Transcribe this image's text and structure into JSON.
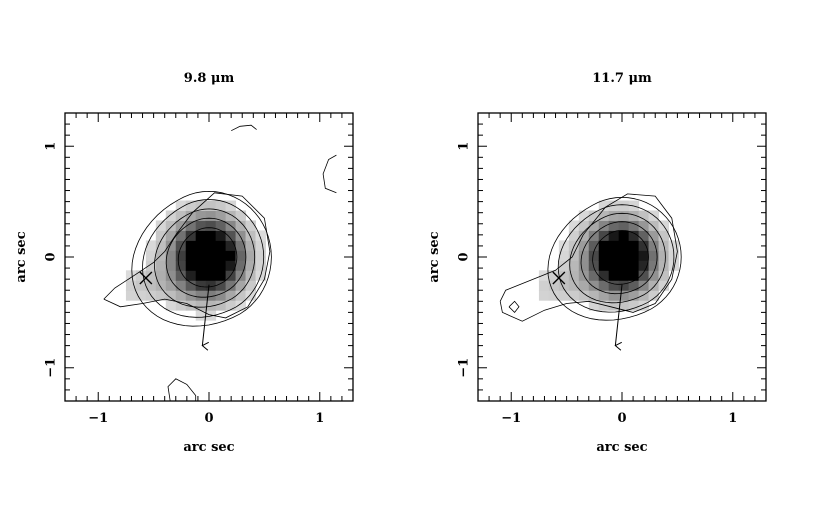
{
  "chart_data": [
    {
      "type": "heatmap",
      "title": "9.8 μm",
      "xlabel": "arc sec",
      "ylabel": "arc sec",
      "xlim": [
        -1.3,
        1.3
      ],
      "ylim": [
        -1.3,
        1.3
      ],
      "x_ticks": [
        -1,
        0,
        1
      ],
      "y_ticks": [
        -1,
        0,
        1
      ],
      "peak": [
        0.0,
        0.0
      ],
      "marker_x": [
        -0.57,
        -0.19
      ],
      "arrow": {
        "from": [
          0.0,
          -0.25
        ],
        "to": [
          -0.06,
          -0.8
        ]
      },
      "source_sigma": [
        0.2,
        0.22
      ],
      "contour_levels": [
        0.05,
        0.1,
        0.2,
        0.35,
        0.55
      ]
    },
    {
      "type": "heatmap",
      "title": "11.7 μm",
      "xlabel": "arc sec",
      "ylabel": "arc sec",
      "xlim": [
        -1.3,
        1.3
      ],
      "ylim": [
        -1.3,
        1.3
      ],
      "x_ticks": [
        -1,
        0,
        1
      ],
      "y_ticks": [
        -1,
        0,
        1
      ],
      "peak": [
        0.0,
        0.0
      ],
      "marker_x": [
        -0.57,
        -0.19
      ],
      "arrow": {
        "from": [
          0.0,
          -0.25
        ],
        "to": [
          -0.06,
          -0.8
        ]
      },
      "source_sigma": [
        0.19,
        0.2
      ],
      "contour_levels": [
        0.05,
        0.1,
        0.2,
        0.35,
        0.55
      ]
    }
  ]
}
